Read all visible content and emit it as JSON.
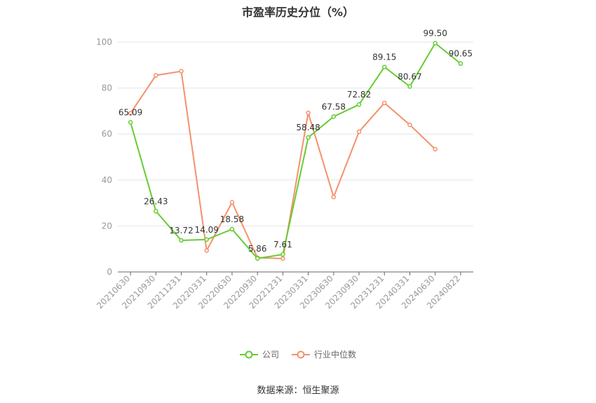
{
  "source": "数据来源：恒生聚源",
  "colors": {
    "company": "#66cc33",
    "industry": "#f4916b",
    "grid": "#e6e6e6",
    "axis": "#666666"
  },
  "chart_data": {
    "type": "line",
    "title": "市盈率历史分位（%）",
    "xlabel": "",
    "ylabel": "",
    "ylim": [
      0,
      100
    ],
    "yticks": [
      0,
      20,
      40,
      60,
      80,
      100
    ],
    "grid": true,
    "legend_position": "bottom",
    "categories": [
      "20210630",
      "20210930",
      "20211231",
      "20220331",
      "20220630",
      "20220930",
      "20221231",
      "20230331",
      "20230630",
      "20230930",
      "20231231",
      "20240331",
      "20240630",
      "20240822"
    ],
    "series": [
      {
        "name": "公司",
        "color": "#66cc33",
        "show_labels": true,
        "values": [
          65.09,
          26.43,
          13.72,
          14.09,
          18.58,
          5.86,
          7.61,
          58.48,
          67.58,
          72.82,
          89.15,
          80.67,
          99.5,
          90.65
        ],
        "labels": [
          "65.09",
          "26.43",
          "13.72",
          "14.09",
          "18.58",
          "5.86",
          "7.61",
          "58.48",
          "67.58",
          "72.82",
          "89.15",
          "80.67",
          "99.50",
          "90.65"
        ]
      },
      {
        "name": "行业中位数",
        "color": "#f4916b",
        "show_labels": false,
        "values": [
          69,
          85.5,
          87.3,
          9.3,
          30.3,
          6.2,
          5.8,
          69.2,
          32.6,
          61,
          73.5,
          64,
          53.4,
          null
        ]
      }
    ]
  }
}
